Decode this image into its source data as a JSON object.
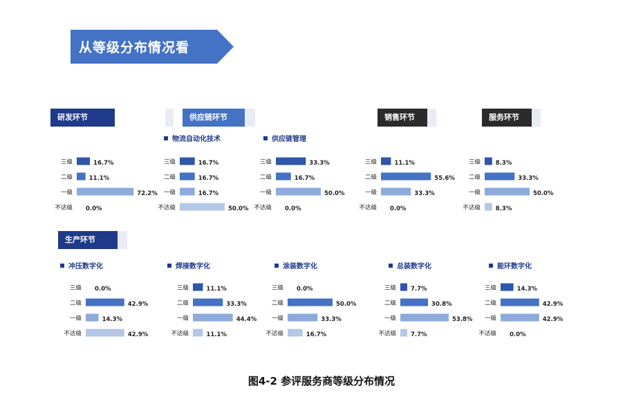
{
  "banner": {
    "title": "从等级分布情况看"
  },
  "sections": {
    "rd": "研发环节",
    "supply": "供应链环节",
    "sales": "销售环节",
    "service": "服务环节",
    "production": "生产环节"
  },
  "figure_caption": "图4-2  参评服务商等级分布情况",
  "colors": {
    "level3": "#2f56a8",
    "level2": "#4472c4",
    "level1": "#8eaadb",
    "below": "#b4c7e7",
    "navy": "#1f3a8a",
    "dark": "#2b2b2b"
  },
  "chart_data": [
    {
      "id": "rd",
      "type": "bar",
      "title": "",
      "categories": [
        "三级",
        "二级",
        "一级",
        "不达级"
      ],
      "values": [
        16.7,
        11.1,
        72.2,
        0.0
      ],
      "labels": [
        "16.7%",
        "11.1%",
        "72.2%",
        "0.0%"
      ]
    },
    {
      "id": "logistics",
      "type": "bar",
      "title": "物流自动化技术",
      "categories": [
        "三级",
        "二级",
        "一级",
        "不达级"
      ],
      "values": [
        16.7,
        16.7,
        16.7,
        50.0
      ],
      "labels": [
        "16.7%",
        "16.7%",
        "16.7%",
        "50.0%"
      ]
    },
    {
      "id": "scm",
      "type": "bar",
      "title": "供应链管理",
      "categories": [
        "三级",
        "二级",
        "一级",
        "不达级"
      ],
      "values": [
        33.3,
        16.7,
        50.0,
        0.0
      ],
      "labels": [
        "33.3%",
        "16.7%",
        "50.0%",
        "0.0%"
      ]
    },
    {
      "id": "sales",
      "type": "bar",
      "title": "",
      "categories": [
        "三级",
        "二级",
        "一级",
        "不达级"
      ],
      "values": [
        11.1,
        55.6,
        33.3,
        0.0
      ],
      "labels": [
        "11.1%",
        "55.6%",
        "33.3%",
        "0.0%"
      ]
    },
    {
      "id": "service",
      "type": "bar",
      "title": "",
      "categories": [
        "三级",
        "二级",
        "一级",
        "不达级"
      ],
      "values": [
        8.3,
        33.3,
        50.0,
        8.3
      ],
      "labels": [
        "8.3%",
        "33.3%",
        "50.0%",
        "8.3%"
      ]
    },
    {
      "id": "stamping",
      "type": "bar",
      "title": "冲压数字化",
      "categories": [
        "三级",
        "二级",
        "一级",
        "不达级"
      ],
      "values": [
        0.0,
        42.9,
        14.3,
        42.9
      ],
      "labels": [
        "0.0%",
        "42.9%",
        "14.3%",
        "42.9%"
      ]
    },
    {
      "id": "welding",
      "type": "bar",
      "title": "焊接数字化",
      "categories": [
        "三级",
        "二级",
        "一级",
        "不达级"
      ],
      "values": [
        11.1,
        33.3,
        44.4,
        11.1
      ],
      "labels": [
        "11.1%",
        "33.3%",
        "44.4%",
        "11.1%"
      ]
    },
    {
      "id": "painting",
      "type": "bar",
      "title": "涂装数字化",
      "categories": [
        "三级",
        "二级",
        "一级",
        "不达级"
      ],
      "values": [
        0.0,
        50.0,
        33.3,
        16.7
      ],
      "labels": [
        "0.0%",
        "50.0%",
        "33.3%",
        "16.7%"
      ]
    },
    {
      "id": "assembly",
      "type": "bar",
      "title": "总装数字化",
      "categories": [
        "三级",
        "二级",
        "一级",
        "不达级"
      ],
      "values": [
        7.7,
        30.8,
        53.8,
        7.7
      ],
      "labels": [
        "7.7%",
        "30.8%",
        "53.8%",
        "7.7%"
      ]
    },
    {
      "id": "energy",
      "type": "bar",
      "title": "能环数字化",
      "categories": [
        "三级",
        "二级",
        "一级",
        "不达级"
      ],
      "values": [
        14.3,
        42.9,
        42.9,
        0.0
      ],
      "labels": [
        "14.3%",
        "42.9%",
        "42.9%",
        "0.0%"
      ]
    }
  ]
}
